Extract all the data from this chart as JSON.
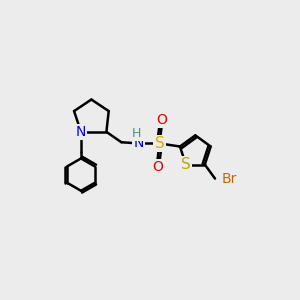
{
  "background_color": "#ececec",
  "bond_color": "#000000",
  "bond_width": 1.8,
  "atom_colors": {
    "N": "#0000ee",
    "S_sulfonamide": "#ddaa00",
    "S_thiophene": "#bbaa00",
    "O": "#ee0000",
    "H": "#4a9090",
    "Br": "#cc6600",
    "C": "#000000"
  },
  "font_size": 10,
  "small_font_size": 8
}
